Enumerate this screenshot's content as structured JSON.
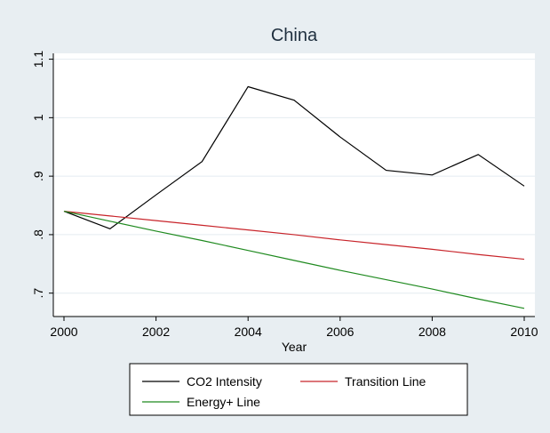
{
  "chart_data": {
    "type": "line",
    "title": "China",
    "xlabel": "Year",
    "ylabel": "",
    "xlim": [
      2000,
      2010
    ],
    "ylim": [
      0.66,
      1.11
    ],
    "x_ticks": [
      2000,
      2002,
      2004,
      2006,
      2008,
      2010
    ],
    "y_ticks": [
      0.7,
      0.8,
      0.9,
      1.0,
      1.1
    ],
    "y_tick_labels": [
      ".7",
      ".8",
      ".9",
      "1",
      "1.1"
    ],
    "x": [
      2000,
      2001,
      2002,
      2003,
      2004,
      2005,
      2006,
      2007,
      2008,
      2009,
      2010
    ],
    "series": [
      {
        "name": "CO2 Intensity",
        "color": "#000000",
        "values": [
          0.84,
          0.81,
          0.868,
          0.925,
          1.053,
          1.03,
          0.967,
          0.91,
          0.902,
          0.937,
          0.883
        ]
      },
      {
        "name": "Transition Line",
        "color": "#c8242a",
        "values": [
          0.84,
          0.832,
          0.824,
          0.816,
          0.808,
          0.8,
          0.791,
          0.783,
          0.775,
          0.766,
          0.758
        ]
      },
      {
        "name": "Energy+ Line",
        "color": "#1f8a1f",
        "values": [
          0.84,
          0.823,
          0.806,
          0.79,
          0.773,
          0.756,
          0.739,
          0.723,
          0.707,
          0.69,
          0.674
        ]
      }
    ],
    "grid": true,
    "legend_position": "bottom"
  }
}
